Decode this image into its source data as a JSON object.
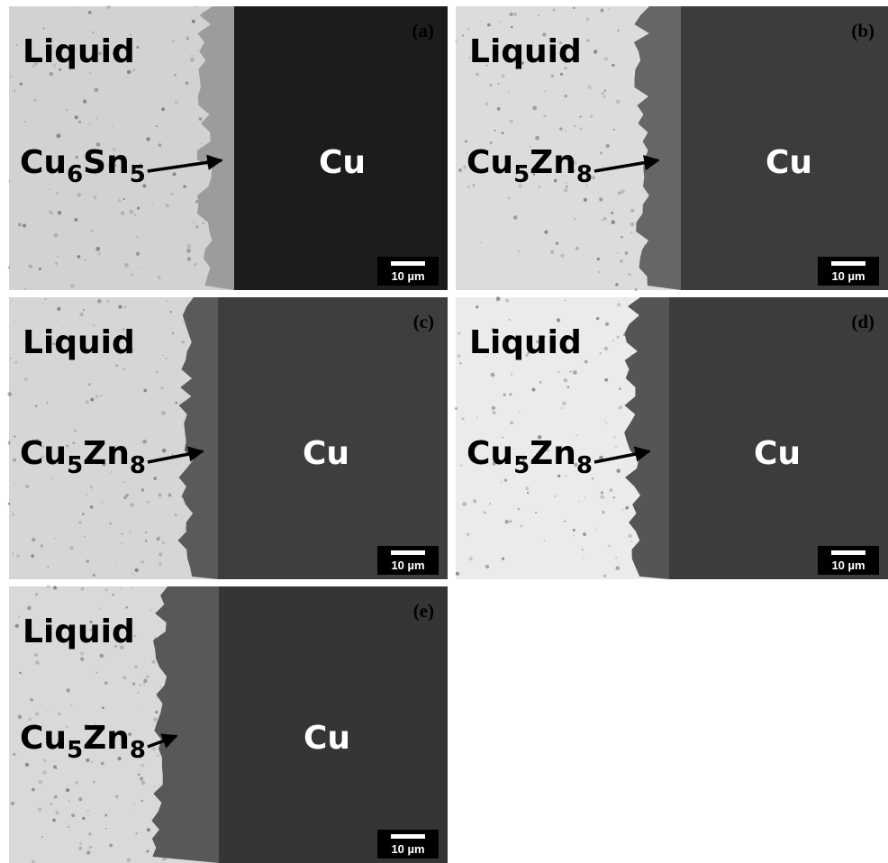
{
  "panels": [
    {
      "label": "(a)",
      "liquid": "Liquid",
      "phase": [
        "Cu",
        "6",
        "Sn",
        "5"
      ],
      "substrate": "Cu",
      "scale": "10 µm"
    },
    {
      "label": "(b)",
      "liquid": "Liquid",
      "phase": [
        "Cu",
        "5",
        "Zn",
        "8"
      ],
      "substrate": "Cu",
      "scale": "10 µm"
    },
    {
      "label": "(c)",
      "liquid": "Liquid",
      "phase": [
        "Cu",
        "5",
        "Zn",
        "8"
      ],
      "substrate": "Cu",
      "scale": "10 µm"
    },
    {
      "label": "(d)",
      "liquid": "Liquid",
      "phase": [
        "Cu",
        "5",
        "Zn",
        "8"
      ],
      "substrate": "Cu",
      "scale": "10 µm"
    },
    {
      "label": "(e)",
      "liquid": "Liquid",
      "phase": [
        "Cu",
        "5",
        "Zn",
        "8"
      ],
      "substrate": "Cu",
      "scale": "10 µm"
    }
  ]
}
